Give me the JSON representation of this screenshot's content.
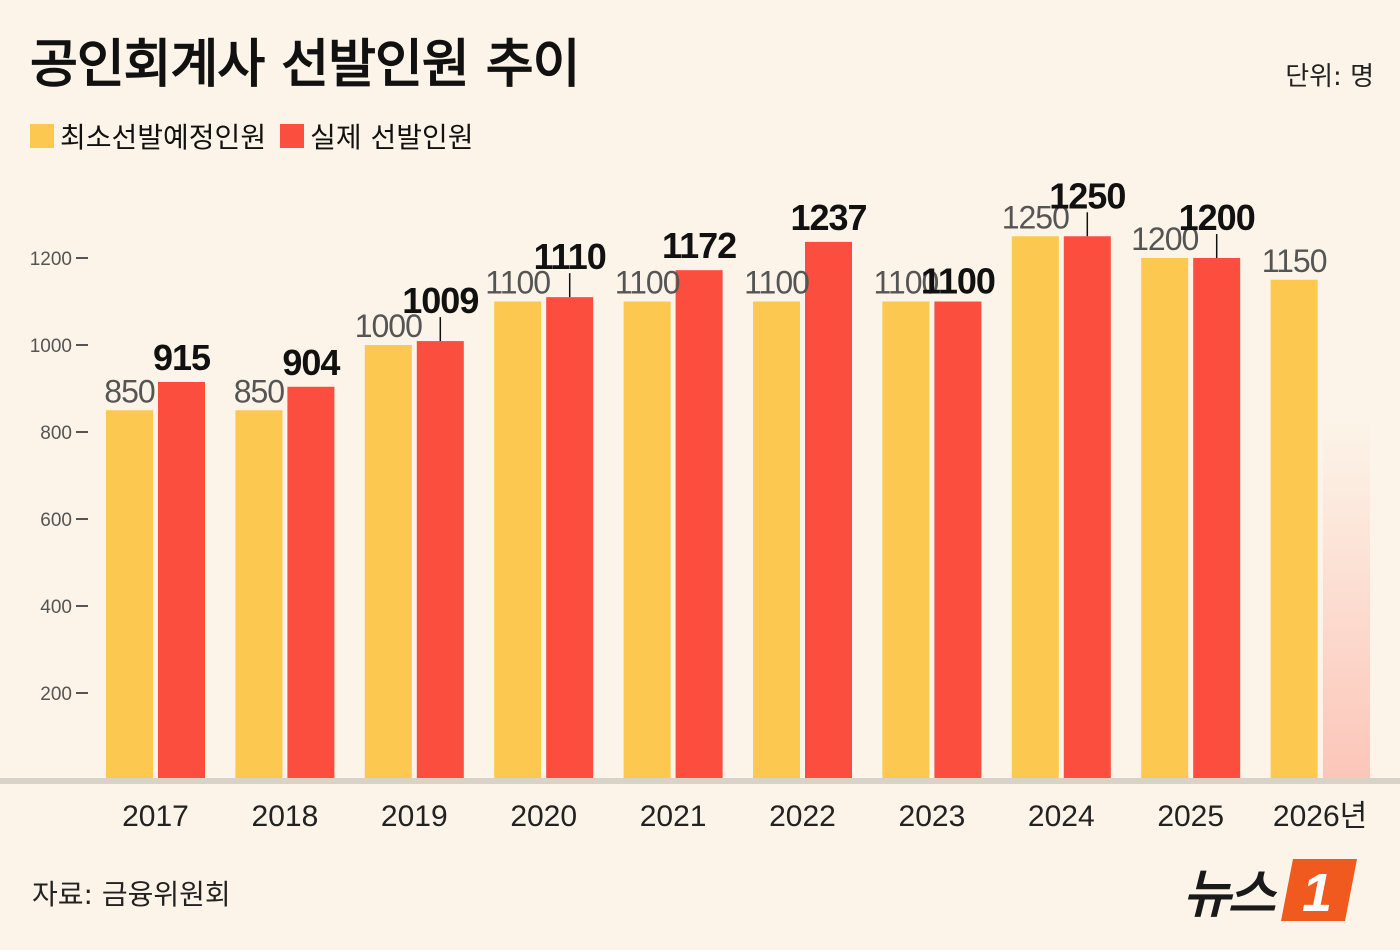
{
  "title": "공인회계사 선발인원 추이",
  "unit": "단위: 명",
  "source": "자료: 금융위원회",
  "logo": {
    "text": "뉴스",
    "mark": "1"
  },
  "colors": {
    "planned": "#fcc850",
    "actual": "#fb4e3f",
    "axis": "#555555",
    "baseline": "#d9d2c8"
  },
  "chart_data": {
    "type": "bar",
    "title": "공인회계사 선발인원 추이",
    "xlabel": "",
    "ylabel": "",
    "categories": [
      "2017",
      "2018",
      "2019",
      "2020",
      "2021",
      "2022",
      "2023",
      "2024",
      "2025",
      "2026년"
    ],
    "series": [
      {
        "name": "최소선발예정인원",
        "values": [
          850,
          850,
          1000,
          1100,
          1100,
          1100,
          1100,
          1250,
          1200,
          1150
        ]
      },
      {
        "name": "실제 선발인원",
        "values": [
          915,
          904,
          1009,
          1110,
          1172,
          1237,
          1100,
          1250,
          1200,
          null
        ]
      }
    ],
    "yticks": [
      200,
      400,
      600,
      800,
      1000,
      1200
    ],
    "ylim": [
      0,
      1400
    ],
    "grid": false,
    "legend": "top-left"
  }
}
